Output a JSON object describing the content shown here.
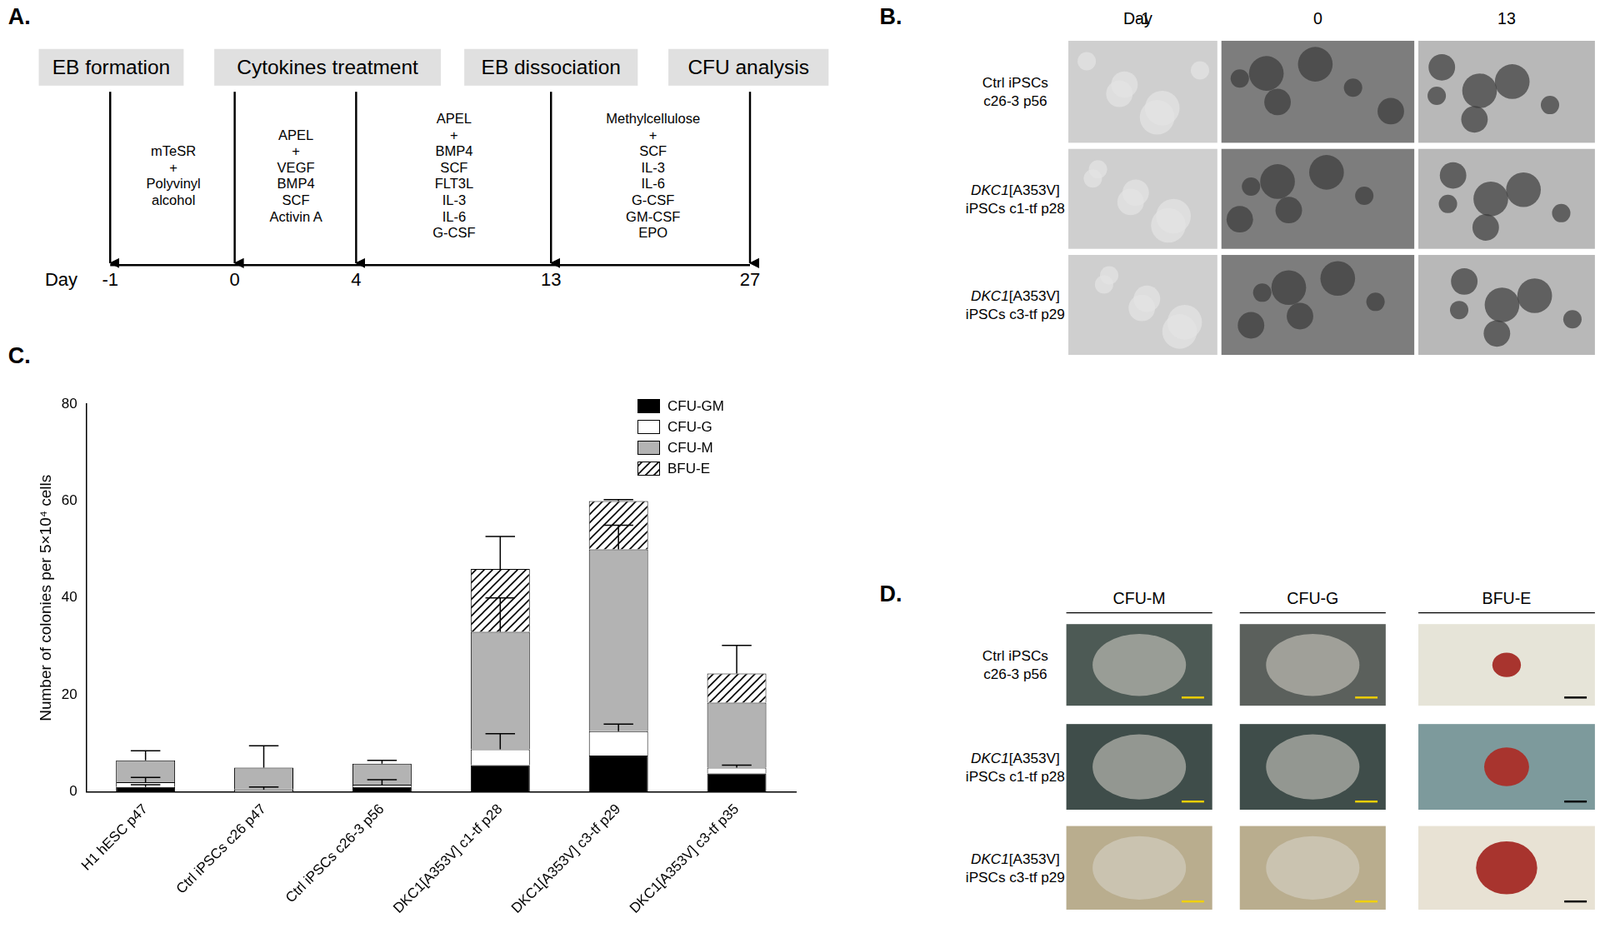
{
  "panels": {
    "A": {
      "panel_label": "A.",
      "steps": [
        "EB formation",
        "Cytokines treatment",
        "EB dissociation",
        "CFU analysis"
      ],
      "day_label": "Day",
      "days": [
        "-1",
        "0",
        "4",
        "13",
        "27"
      ],
      "media": [
        [
          "mTeSR",
          "+",
          "Polyvinyl",
          "alcohol"
        ],
        [
          "APEL",
          "+",
          "VEGF",
          "BMP4",
          "SCF",
          "Activin A"
        ],
        [
          "APEL",
          "+",
          "BMP4",
          "SCF",
          "FLT3L",
          "IL-3",
          "IL-6",
          "G-CSF"
        ],
        [
          "Methylcellulose",
          "+",
          "SCF",
          "IL-3",
          "IL-6",
          "G-CSF",
          "GM-CSF",
          "EPO"
        ]
      ]
    },
    "B": {
      "panel_label": "B.",
      "column_title": "Day",
      "columns": [
        "-1",
        "0",
        "13"
      ],
      "rows": [
        {
          "lines": [
            "Ctrl iPSCs",
            "c26-3 p56"
          ]
        },
        {
          "gene": "DKC1",
          "lines": [
            "[A353V]",
            "iPSCs c1-tf p28"
          ]
        },
        {
          "gene": "DKC1",
          "lines": [
            "[A353V]",
            "iPSCs c3-tf p29"
          ]
        }
      ]
    },
    "D": {
      "panel_label": "D.",
      "columns": [
        "CFU-M",
        "CFU-G",
        "BFU-E"
      ],
      "rows": [
        {
          "lines": [
            "Ctrl iPSCs",
            "c26-3 p56"
          ]
        },
        {
          "gene": "DKC1",
          "lines": [
            "[A353V]",
            "iPSCs c1-tf p28"
          ]
        },
        {
          "gene": "DKC1",
          "lines": [
            "[A353V]",
            "iPSCs c3-tf p29"
          ]
        }
      ]
    }
  },
  "chart_data": {
    "panel_label": "C.",
    "type": "bar",
    "stacked": true,
    "grid": false,
    "legend": "top-right",
    "y_label": "Number of colonies per 5×10⁴ cells",
    "categories": [
      "H1 hESC p47",
      "Ctrl iPSCs c26 p47",
      "Ctrl iPSCs c26-3 p56",
      "DKC1[A353V] c1-tf p28",
      "DKC1[A353V] c3-tf p29",
      "DKC1[A353V] c3-tf p35"
    ],
    "series": [
      {
        "name": "CFU-GM",
        "color": "#000000",
        "values": [
          1,
          0,
          1,
          5.5,
          7.5,
          3.8
        ],
        "errors": [
          0.5,
          0,
          0,
          0,
          0,
          0
        ]
      },
      {
        "name": "CFU-G",
        "color": "#ffffff",
        "values": [
          1,
          0.5,
          0.5,
          3.3,
          5,
          1.2
        ],
        "errors": [
          1,
          0.5,
          1,
          3.2,
          1.5,
          0.5
        ]
      },
      {
        "name": "CFU-M",
        "color": "#b3b3b3",
        "values": [
          4.5,
          4.5,
          4.3,
          24.2,
          37.5,
          13.4
        ],
        "errors": [
          2,
          4.5,
          0.7,
          7,
          5,
          0
        ]
      },
      {
        "name": "BFU-E",
        "color": "#000000",
        "line_style": "hatch",
        "values": [
          0,
          0,
          0,
          13,
          10,
          6
        ],
        "errors": [
          0,
          0,
          0,
          6.7,
          0.3,
          5.8
        ]
      }
    ],
    "ylim": [
      0,
      80
    ],
    "yticks": [
      0,
      20,
      40,
      60,
      80
    ]
  }
}
